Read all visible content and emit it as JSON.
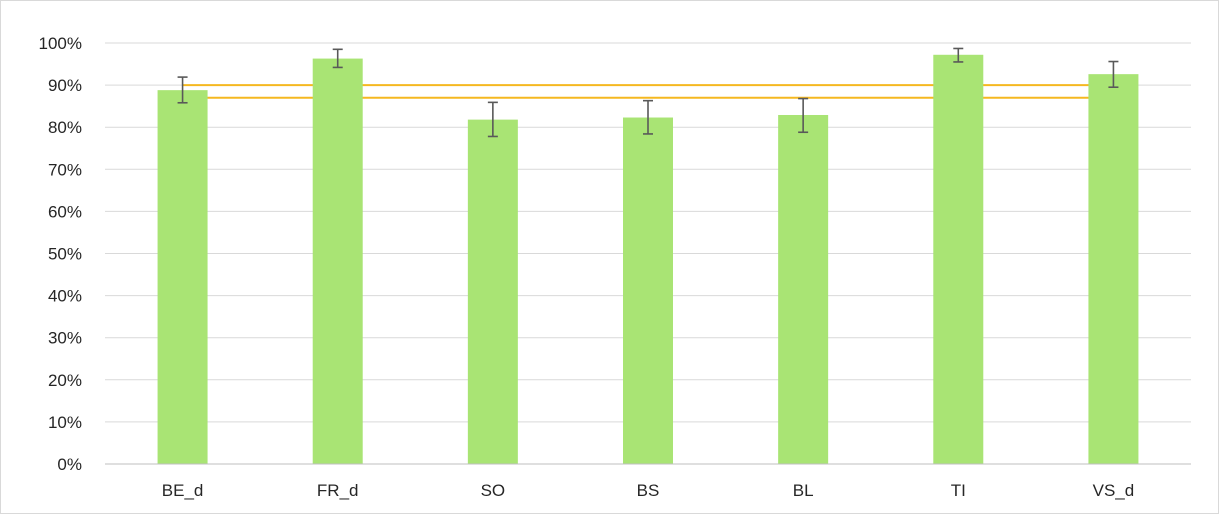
{
  "chart_data": {
    "type": "bar",
    "categories": [
      "BE_d",
      "FR_d",
      "SO",
      "BS",
      "BL",
      "TI",
      "VS_d"
    ],
    "values": [
      0.888,
      0.963,
      0.818,
      0.823,
      0.829,
      0.972,
      0.926
    ],
    "error_low": [
      0.858,
      0.942,
      0.778,
      0.784,
      0.788,
      0.955,
      0.895
    ],
    "error_high": [
      0.919,
      0.985,
      0.859,
      0.863,
      0.868,
      0.987,
      0.956
    ],
    "reference_lines": [
      0.9,
      0.87
    ],
    "ylim": [
      0,
      1
    ],
    "yticks": [
      "0%",
      "10%",
      "20%",
      "30%",
      "40%",
      "50%",
      "60%",
      "70%",
      "80%",
      "90%",
      "100%"
    ],
    "title": "",
    "xlabel": "",
    "ylabel": "",
    "grid": true,
    "colors": {
      "bar": "#a9e474",
      "error_bar": "#595959",
      "reference_line": "#f5b820",
      "grid": "#d9d9d9",
      "axis": "#bfbfbf"
    }
  }
}
